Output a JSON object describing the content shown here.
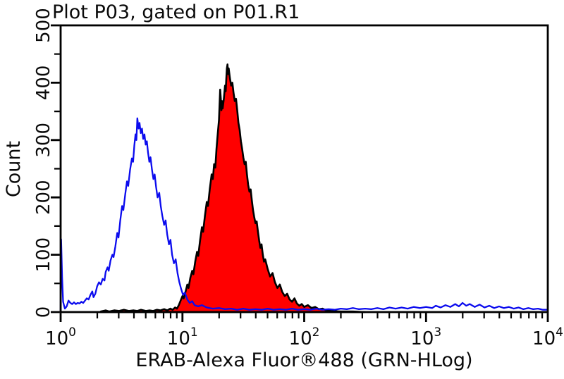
{
  "window": {
    "title": "Plot P03, gated on P01.R1"
  },
  "chart_data": {
    "type": "area",
    "title": "Plot P03, gated on P01.R1",
    "xlabel": "ERAB-Alexa Fluor®488 (GRN-HLog)",
    "ylabel": "Count",
    "x_scale": "log10",
    "xlim_exponents": [
      0,
      4
    ],
    "ylim": [
      0,
      500
    ],
    "grid": false,
    "legend": "none",
    "x_axis": {
      "tick_base": "10",
      "tick_exponents": [
        0,
        1,
        2,
        3,
        4
      ],
      "minor_ticks": "log 2-9 per decade"
    },
    "y_axis": {
      "major_ticks": [
        0,
        100,
        200,
        300,
        400,
        500
      ],
      "minor_tick_step": 50,
      "label_rotation_deg": -90
    },
    "colors": {
      "control_line": "#0b0bee",
      "sample_fill": "#ff0000",
      "sample_outline": "#000000",
      "axis": "#000000",
      "background": "#ffffff"
    },
    "series": [
      {
        "name": "sample-filled-red",
        "style": "filled",
        "points": [
          [
            0.33,
            1
          ],
          [
            0.37,
            3
          ],
          [
            0.4,
            1
          ],
          [
            0.44,
            3
          ],
          [
            0.48,
            2
          ],
          [
            0.52,
            4
          ],
          [
            0.56,
            2
          ],
          [
            0.6,
            3
          ],
          [
            0.63,
            2
          ],
          [
            0.66,
            4
          ],
          [
            0.7,
            2
          ],
          [
            0.73,
            3
          ],
          [
            0.76,
            2
          ],
          [
            0.79,
            4
          ],
          [
            0.82,
            3
          ],
          [
            0.85,
            5
          ],
          [
            0.875,
            3
          ],
          [
            0.9,
            6
          ],
          [
            0.92,
            4
          ],
          [
            0.94,
            8
          ],
          [
            0.955,
            6
          ],
          [
            0.97,
            12
          ],
          [
            0.985,
            20
          ],
          [
            1.0,
            28
          ],
          [
            1.01,
            24
          ],
          [
            1.025,
            35
          ],
          [
            1.04,
            48
          ],
          [
            1.05,
            42
          ],
          [
            1.065,
            60
          ],
          [
            1.08,
            72
          ],
          [
            1.09,
            66
          ],
          [
            1.105,
            88
          ],
          [
            1.12,
            105
          ],
          [
            1.13,
            98
          ],
          [
            1.145,
            125
          ],
          [
            1.16,
            148
          ],
          [
            1.17,
            140
          ],
          [
            1.185,
            168
          ],
          [
            1.2,
            192
          ],
          [
            1.21,
            185
          ],
          [
            1.225,
            215
          ],
          [
            1.24,
            240
          ],
          [
            1.25,
            232
          ],
          [
            1.26,
            258
          ],
          [
            1.27,
            252
          ],
          [
            1.28,
            285
          ],
          [
            1.29,
            310
          ],
          [
            1.3,
            335
          ],
          [
            1.305,
            360
          ],
          [
            1.31,
            388
          ],
          [
            1.315,
            372
          ],
          [
            1.32,
            352
          ],
          [
            1.325,
            368
          ],
          [
            1.33,
            355
          ],
          [
            1.34,
            372
          ],
          [
            1.35,
            395
          ],
          [
            1.355,
            385
          ],
          [
            1.36,
            405
          ],
          [
            1.365,
            425
          ],
          [
            1.37,
            432
          ],
          [
            1.375,
            415
          ],
          [
            1.38,
            425
          ],
          [
            1.39,
            408
          ],
          [
            1.4,
            395
          ],
          [
            1.41,
            400
          ],
          [
            1.42,
            382
          ],
          [
            1.43,
            368
          ],
          [
            1.44,
            372
          ],
          [
            1.45,
            352
          ],
          [
            1.46,
            330
          ],
          [
            1.47,
            318
          ],
          [
            1.48,
            298
          ],
          [
            1.49,
            285
          ],
          [
            1.5,
            270
          ],
          [
            1.51,
            258
          ],
          [
            1.52,
            262
          ],
          [
            1.53,
            240
          ],
          [
            1.54,
            222
          ],
          [
            1.55,
            210
          ],
          [
            1.56,
            214
          ],
          [
            1.57,
            195
          ],
          [
            1.58,
            178
          ],
          [
            1.59,
            165
          ],
          [
            1.6,
            155
          ],
          [
            1.61,
            158
          ],
          [
            1.62,
            140
          ],
          [
            1.63,
            125
          ],
          [
            1.64,
            112
          ],
          [
            1.65,
            118
          ],
          [
            1.66,
            100
          ],
          [
            1.67,
            88
          ],
          [
            1.68,
            92
          ],
          [
            1.7,
            75
          ],
          [
            1.72,
            62
          ],
          [
            1.74,
            68
          ],
          [
            1.76,
            52
          ],
          [
            1.78,
            42
          ],
          [
            1.8,
            48
          ],
          [
            1.82,
            35
          ],
          [
            1.84,
            28
          ],
          [
            1.86,
            32
          ],
          [
            1.88,
            22
          ],
          [
            1.9,
            18
          ],
          [
            1.92,
            24
          ],
          [
            1.94,
            15
          ],
          [
            1.96,
            11
          ],
          [
            1.98,
            14
          ],
          [
            2.0,
            9
          ],
          [
            2.03,
            12
          ],
          [
            2.06,
            7
          ],
          [
            2.09,
            9
          ],
          [
            2.12,
            5
          ],
          [
            2.15,
            6
          ],
          [
            2.18,
            3
          ],
          [
            2.22,
            2
          ],
          [
            2.3,
            1
          ],
          [
            2.4,
            1
          ],
          [
            2.5,
            0
          ]
        ]
      },
      {
        "name": "control-open-blue",
        "style": "line",
        "points": [
          [
            0.0,
            0
          ],
          [
            0.004,
            127
          ],
          [
            0.012,
            60
          ],
          [
            0.02,
            18
          ],
          [
            0.035,
            6
          ],
          [
            0.05,
            10
          ],
          [
            0.065,
            20
          ],
          [
            0.08,
            16
          ],
          [
            0.095,
            14
          ],
          [
            0.11,
            17
          ],
          [
            0.125,
            14
          ],
          [
            0.14,
            16
          ],
          [
            0.155,
            15
          ],
          [
            0.17,
            18
          ],
          [
            0.185,
            16
          ],
          [
            0.2,
            20
          ],
          [
            0.215,
            24
          ],
          [
            0.23,
            22
          ],
          [
            0.245,
            30
          ],
          [
            0.26,
            36
          ],
          [
            0.27,
            26
          ],
          [
            0.285,
            32
          ],
          [
            0.3,
            45
          ],
          [
            0.315,
            52
          ],
          [
            0.33,
            48
          ],
          [
            0.345,
            58
          ],
          [
            0.36,
            55
          ],
          [
            0.37,
            70
          ],
          [
            0.385,
            78
          ],
          [
            0.395,
            72
          ],
          [
            0.41,
            90
          ],
          [
            0.425,
            100
          ],
          [
            0.435,
            96
          ],
          [
            0.45,
            115
          ],
          [
            0.465,
            138
          ],
          [
            0.475,
            130
          ],
          [
            0.49,
            160
          ],
          [
            0.505,
            185
          ],
          [
            0.515,
            178
          ],
          [
            0.53,
            205
          ],
          [
            0.545,
            228
          ],
          [
            0.555,
            220
          ],
          [
            0.57,
            248
          ],
          [
            0.585,
            268
          ],
          [
            0.595,
            262
          ],
          [
            0.605,
            290
          ],
          [
            0.615,
            310
          ],
          [
            0.622,
            300
          ],
          [
            0.63,
            338
          ],
          [
            0.64,
            320
          ],
          [
            0.648,
            330
          ],
          [
            0.658,
            312
          ],
          [
            0.668,
            320
          ],
          [
            0.678,
            302
          ],
          [
            0.688,
            310
          ],
          [
            0.698,
            292
          ],
          [
            0.708,
            298
          ],
          [
            0.718,
            278
          ],
          [
            0.728,
            262
          ],
          [
            0.738,
            270
          ],
          [
            0.75,
            248
          ],
          [
            0.762,
            232
          ],
          [
            0.772,
            240
          ],
          [
            0.784,
            218
          ],
          [
            0.796,
            200
          ],
          [
            0.81,
            208
          ],
          [
            0.822,
            185
          ],
          [
            0.835,
            168
          ],
          [
            0.85,
            152
          ],
          [
            0.862,
            160
          ],
          [
            0.875,
            135
          ],
          [
            0.89,
            118
          ],
          [
            0.902,
            126
          ],
          [
            0.915,
            100
          ],
          [
            0.93,
            85
          ],
          [
            0.945,
            92
          ],
          [
            0.96,
            68
          ],
          [
            0.975,
            52
          ],
          [
            0.99,
            40
          ],
          [
            1.005,
            30
          ],
          [
            1.02,
            34
          ],
          [
            1.04,
            22
          ],
          [
            1.06,
            16
          ],
          [
            1.08,
            19
          ],
          [
            1.1,
            12
          ],
          [
            1.13,
            10
          ],
          [
            1.16,
            12
          ],
          [
            1.2,
            8
          ],
          [
            1.25,
            6
          ],
          [
            1.3,
            7
          ],
          [
            1.35,
            5
          ],
          [
            1.4,
            6
          ],
          [
            1.45,
            4
          ],
          [
            1.5,
            6
          ],
          [
            1.55,
            4
          ],
          [
            1.6,
            5
          ],
          [
            1.65,
            4
          ],
          [
            1.7,
            6
          ],
          [
            1.75,
            4
          ],
          [
            1.8,
            5
          ],
          [
            1.85,
            4
          ],
          [
            1.9,
            6
          ],
          [
            1.95,
            4
          ],
          [
            2.0,
            5
          ],
          [
            2.05,
            4
          ],
          [
            2.1,
            6
          ],
          [
            2.15,
            4
          ],
          [
            2.2,
            5
          ],
          [
            2.25,
            4
          ],
          [
            2.3,
            6
          ],
          [
            2.35,
            5
          ],
          [
            2.4,
            7
          ],
          [
            2.45,
            5
          ],
          [
            2.5,
            6
          ],
          [
            2.55,
            5
          ],
          [
            2.6,
            7
          ],
          [
            2.65,
            5
          ],
          [
            2.7,
            8
          ],
          [
            2.75,
            6
          ],
          [
            2.8,
            8
          ],
          [
            2.85,
            6
          ],
          [
            2.9,
            9
          ],
          [
            2.95,
            7
          ],
          [
            3.0,
            9
          ],
          [
            3.05,
            7
          ],
          [
            3.08,
            11
          ],
          [
            3.12,
            8
          ],
          [
            3.16,
            12
          ],
          [
            3.2,
            9
          ],
          [
            3.24,
            14
          ],
          [
            3.27,
            10
          ],
          [
            3.3,
            16
          ],
          [
            3.33,
            11
          ],
          [
            3.36,
            14
          ],
          [
            3.4,
            9
          ],
          [
            3.44,
            13
          ],
          [
            3.48,
            8
          ],
          [
            3.52,
            11
          ],
          [
            3.56,
            7
          ],
          [
            3.6,
            10
          ],
          [
            3.64,
            7
          ],
          [
            3.68,
            9
          ],
          [
            3.72,
            6
          ],
          [
            3.76,
            8
          ],
          [
            3.8,
            5
          ],
          [
            3.84,
            7
          ],
          [
            3.88,
            5
          ],
          [
            3.92,
            6
          ],
          [
            3.96,
            4
          ],
          [
            4.0,
            4
          ]
        ]
      }
    ]
  }
}
